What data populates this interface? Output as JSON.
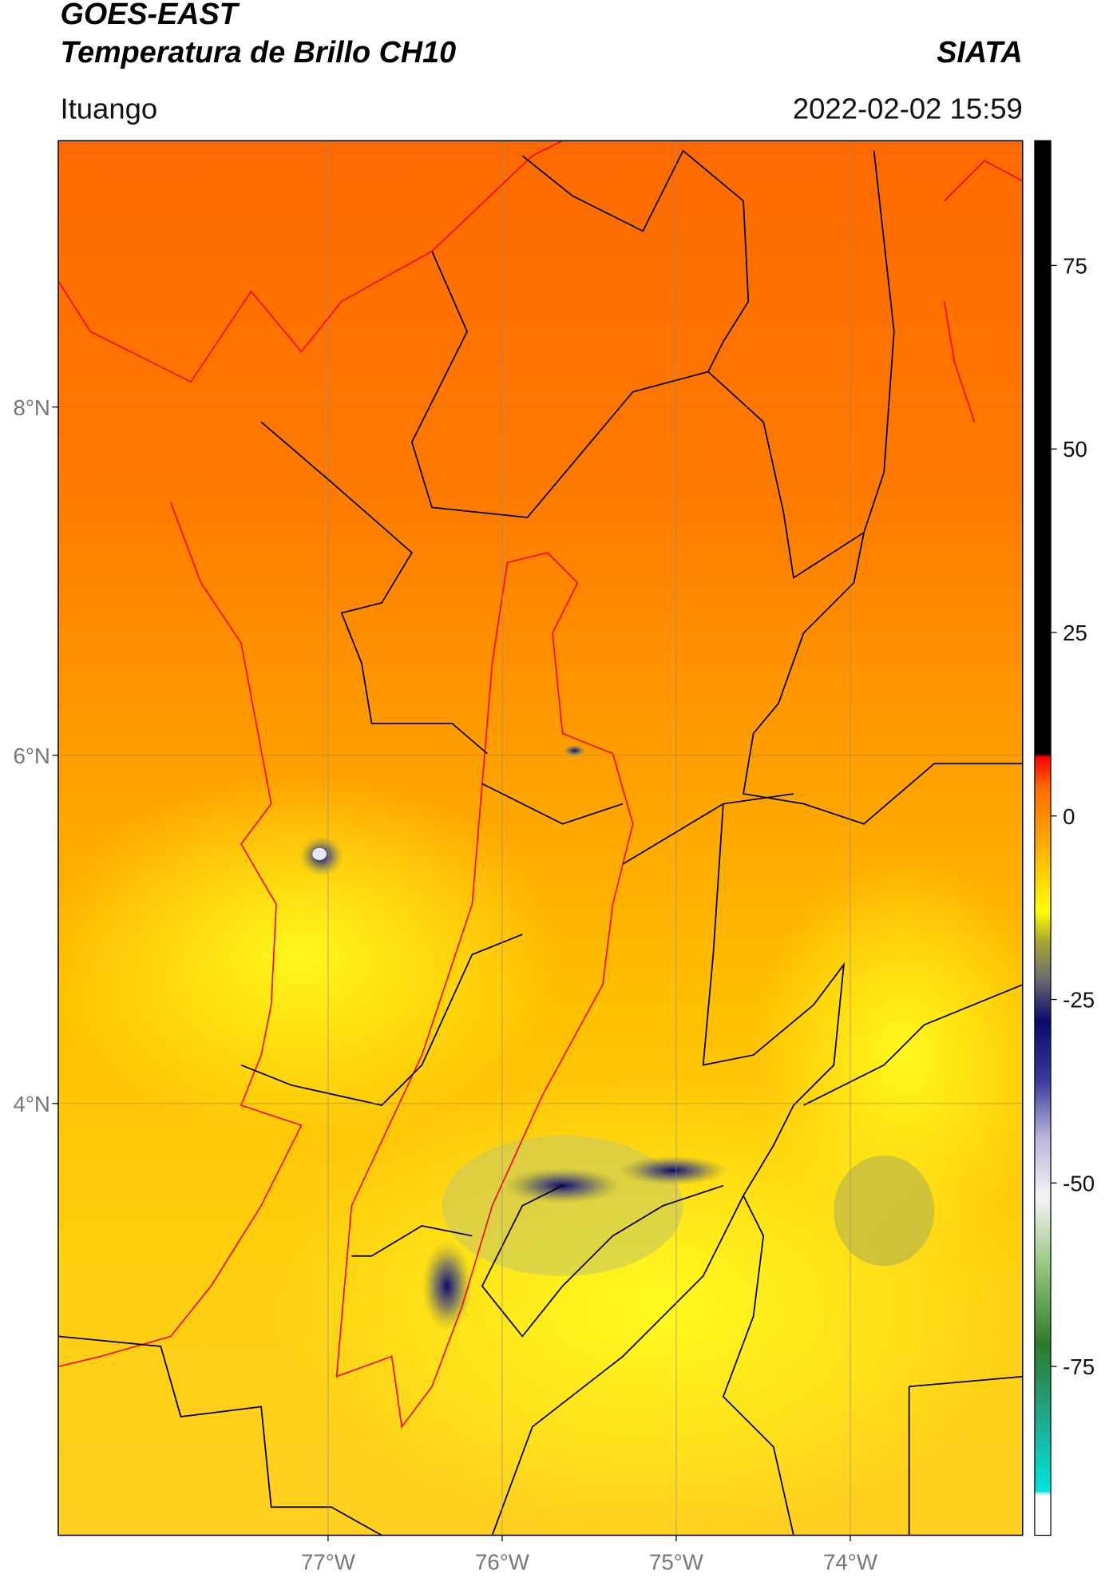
{
  "map": {
    "title": "GOES-EAST",
    "subtitle": "Temperatura de Brillo CH10",
    "source": "SIATA",
    "region": "Ituango",
    "datetime": "2022-02-02 15:59",
    "xlim": [
      -78.55,
      -73.01
    ],
    "ylim": [
      1.52,
      9.53
    ],
    "xticks": [
      {
        "value": -77,
        "label": "77°W"
      },
      {
        "value": -76,
        "label": "76°W"
      },
      {
        "value": -75,
        "label": "75°W"
      },
      {
        "value": -74,
        "label": "74°W"
      }
    ],
    "yticks": [
      {
        "value": 8,
        "label": "8°N"
      },
      {
        "value": 6,
        "label": "6°N"
      },
      {
        "value": 4,
        "label": "4°N"
      }
    ],
    "grid": true,
    "colorbar": {
      "lim": [
        -98,
        92
      ],
      "ticks": [
        75,
        50,
        25,
        0,
        -25,
        -50,
        -75
      ],
      "stops": [
        {
          "value": -98,
          "color": "#ffffff"
        },
        {
          "value": -92.5,
          "color": "#ffffff"
        },
        {
          "value": -92,
          "color": "#00e5e0"
        },
        {
          "value": -82,
          "color": "#1fa98a"
        },
        {
          "value": -72,
          "color": "#2d7a2d"
        },
        {
          "value": -62,
          "color": "#8fc27a"
        },
        {
          "value": -52,
          "color": "#f4f4f4"
        },
        {
          "value": -44,
          "color": "#b9b9dd"
        },
        {
          "value": -36,
          "color": "#3a3a9a"
        },
        {
          "value": -28,
          "color": "#0a0a6e"
        },
        {
          "value": -22,
          "color": "#6e6e6e"
        },
        {
          "value": -17,
          "color": "#a8a830"
        },
        {
          "value": -13,
          "color": "#ffff00"
        },
        {
          "value": -3,
          "color": "#ffa500"
        },
        {
          "value": 4,
          "color": "#ff6a00"
        },
        {
          "value": 8,
          "color": "#ff0000"
        },
        {
          "value": 8.5,
          "color": "#000000"
        },
        {
          "value": 92,
          "color": "#000000"
        }
      ]
    }
  }
}
